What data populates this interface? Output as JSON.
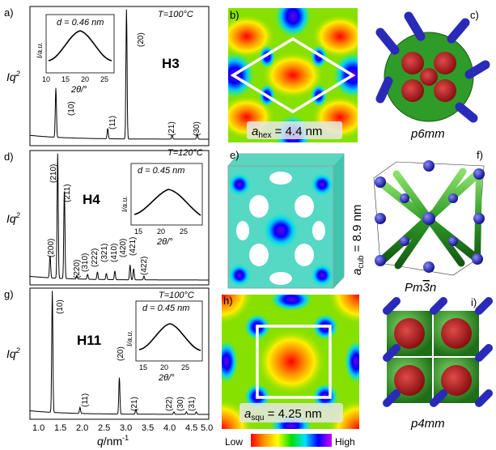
{
  "panels": {
    "a": {
      "label": "a)",
      "temp": "T=100°C",
      "name": "H3",
      "inset_d": "d = 0.46 nm",
      "peaks": [
        "(10)",
        "(11)",
        "(20)",
        "(21)",
        "(30)"
      ]
    },
    "d": {
      "label": "d)",
      "temp": "T=120°C",
      "name": "H4",
      "inset_d": "d = 0.45 nm",
      "peaks": [
        "(200)",
        "(210)",
        "(211)",
        "(220)",
        "(310)",
        "(222)",
        "(321)",
        "(410)",
        "(420)",
        "(421)",
        "(422)"
      ]
    },
    "g": {
      "label": "g)",
      "temp": "T=100°C",
      "name": "H11",
      "inset_d": "d = 0.45 nm",
      "peaks": [
        "(10)",
        "(11)",
        "(20)",
        "(21)",
        "(22)",
        "(30)",
        "(31)"
      ]
    },
    "b": {
      "label": "b)",
      "caption": "a",
      "caption_sub": "hex",
      "caption_rest": " = 4.4 nm"
    },
    "e": {
      "label": "e)",
      "side_caption": "a",
      "side_sub": "cub",
      "side_rest": " = 8.9 nm"
    },
    "h": {
      "label": "h)",
      "caption": "a",
      "caption_sub": "squ",
      "caption_rest": " = 4.25 nm"
    },
    "c": {
      "label": "c)",
      "group": "p6mm"
    },
    "f": {
      "label": "f)",
      "group_pre": "Pm",
      "group_bar": "3",
      "group_post": "n"
    },
    "i": {
      "label": "i)",
      "group": "p4mm"
    }
  },
  "axes": {
    "ylabel_main": "Iq",
    "ylabel_sup": "2",
    "inset_ylabel": "I/a.u.",
    "inset_xlabel": "2θ/°",
    "inset_ticks": [
      "10",
      "15",
      "20",
      "25"
    ],
    "xlabel_q": "q",
    "xlabel_unit": "/nm",
    "xlabel_sup": "-1",
    "xticks": [
      "1.0",
      "1.5",
      "2.0",
      "2.5",
      "3.0",
      "3.5",
      "4.0",
      "4.5",
      "5.0"
    ]
  },
  "colorbar": {
    "low": "Low",
    "high": "High"
  },
  "chart_data": [
    {
      "type": "line",
      "xlabel": "q/nm-1",
      "ylabel": "Iq2",
      "xlim": [
        1.0,
        5.0
      ],
      "peaks_q": [
        1.58,
        2.74,
        3.16,
        4.18,
        4.74
      ],
      "peak_heights": [
        0.38,
        0.08,
        1.0,
        0.03,
        0.04
      ]
    },
    {
      "type": "line",
      "xlabel": "q/nm-1",
      "ylabel": "Iq2",
      "xlim": [
        1.0,
        5.0
      ],
      "peaks_q": [
        1.45,
        1.62,
        1.77,
        2.05,
        2.29,
        2.51,
        2.71,
        2.9,
        3.24,
        3.32,
        3.55
      ],
      "peak_heights": [
        0.18,
        1.0,
        0.72,
        0.03,
        0.04,
        0.06,
        0.05,
        0.07,
        0.12,
        0.09,
        0.03
      ]
    },
    {
      "type": "line",
      "xlabel": "q/nm-1",
      "ylabel": "Iq2",
      "xlim": [
        1.0,
        5.0
      ],
      "peaks_q": [
        1.5,
        2.12,
        3.0,
        3.37,
        4.22,
        4.5,
        4.72
      ],
      "peak_heights": [
        1.0,
        0.05,
        0.3,
        0.04,
        0.02,
        0.02,
        0.02
      ]
    }
  ]
}
